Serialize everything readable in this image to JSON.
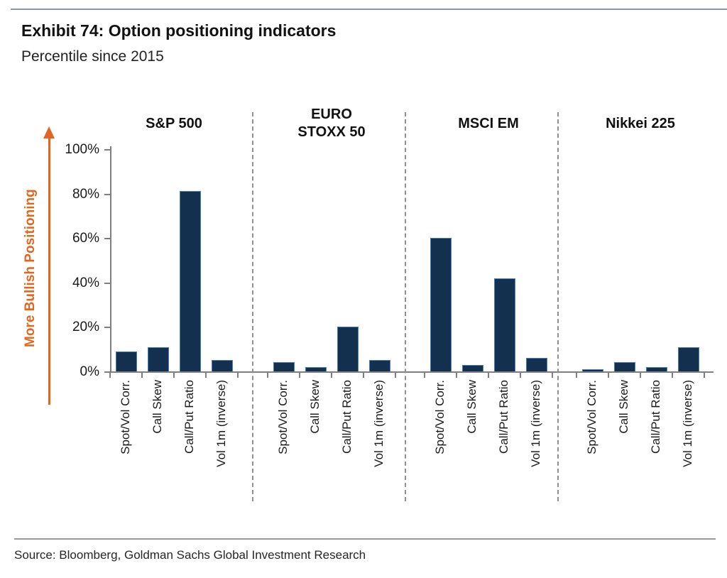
{
  "chart_data": {
    "type": "bar",
    "title": "Exhibit 74: Option positioning indicators",
    "subtitle": "Percentile since 2015",
    "source": "Source: Bloomberg, Goldman Sachs Global Investment Research",
    "ylabel": "More Bullish Positioning",
    "unit": "%",
    "ylim": [
      0,
      100
    ],
    "yticks": [
      0,
      20,
      40,
      60,
      80,
      100
    ],
    "ytick_labels": [
      "0%",
      "20%",
      "40%",
      "60%",
      "80%",
      "100%"
    ],
    "categories": [
      "Spot/Vol Corr.",
      "Call Skew",
      "Call/Put Ratio",
      "Vol 1m (inverse)"
    ],
    "series": [
      {
        "name": "S&P 500",
        "name_lines": [
          "S&P 500"
        ],
        "values": [
          9,
          11,
          81,
          5
        ]
      },
      {
        "name": "EURO STOXX 50",
        "name_lines": [
          "EURO",
          "STOXX 50"
        ],
        "values": [
          4,
          2,
          20,
          5
        ]
      },
      {
        "name": "MSCI EM",
        "name_lines": [
          "MSCI EM"
        ],
        "values": [
          60,
          3,
          42,
          6
        ]
      },
      {
        "name": "Nikkei 225",
        "name_lines": [
          "Nikkei 225"
        ],
        "values": [
          1,
          4,
          2,
          11
        ]
      }
    ],
    "grid": false,
    "legend": false,
    "colors": {
      "bar": "#13304f",
      "bar_border": "#4a7ebb",
      "axis": "#7f7f7f",
      "arrow_and_ylabel": "#e2661f",
      "separator": "#909090",
      "top_rule": "#9193b5"
    }
  }
}
